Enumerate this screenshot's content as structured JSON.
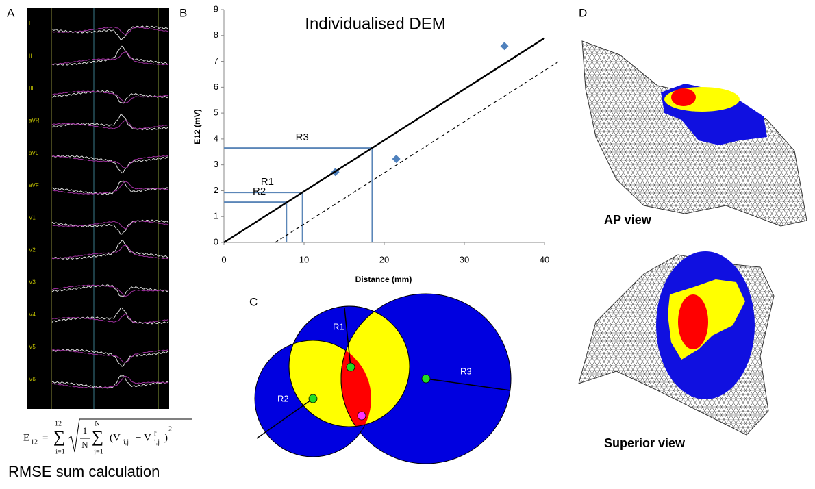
{
  "panel_labels": [
    "A",
    "B",
    "C",
    "D"
  ],
  "ecg": {
    "leads": [
      "I",
      "II",
      "III",
      "aVR",
      "aVL",
      "aVF",
      "V1",
      "V2",
      "V3",
      "V4",
      "V5",
      "V6"
    ],
    "caption": "RMSE sum calculation"
  },
  "formula": {
    "lhs": "E",
    "lhs_sub": "12",
    "eq": "=",
    "sigma": "∑",
    "sum1_top": "12",
    "sum1_bottom": "i=1",
    "frac_num": "1",
    "frac_den": "N",
    "sum2_top": "N",
    "sum2_bottom": "j=1",
    "term": "(V",
    "term_sub": "i,j",
    "minus": "− V",
    "minus_sup": "r",
    "minus_sub": "i,j",
    "close": ")",
    "power": "2"
  },
  "chart_data": {
    "type": "scatter",
    "title": "Individualised DEM",
    "x_label": "Distance (mm)",
    "y_label": "E12 (mV)",
    "xlim": [
      0,
      40
    ],
    "ylim": [
      0,
      9
    ],
    "xticks": [
      0,
      10,
      20,
      30,
      40
    ],
    "yticks": [
      0,
      1,
      2,
      3,
      4,
      5,
      6,
      7,
      8,
      9
    ],
    "series": [
      {
        "mode": "markers",
        "marker": "diamond",
        "color": "#4f81bd",
        "x": [
          13.9,
          21.5,
          35.0
        ],
        "values": [
          2.72,
          3.23,
          7.59
        ]
      },
      {
        "mode": "line",
        "dash": false,
        "color": "#000000",
        "x": [
          0,
          40
        ],
        "values": [
          0,
          7.9
        ]
      },
      {
        "mode": "line",
        "dash": true,
        "color": "#000000",
        "x": [
          6.4,
          41.7
        ],
        "values": [
          0,
          6.98
        ]
      }
    ],
    "guides": [
      {
        "label": "R1",
        "x": 9.8,
        "y": 1.93
      },
      {
        "label": "R2",
        "x": 7.8,
        "y": 1.56
      },
      {
        "label": "R3",
        "x": 18.5,
        "y": 3.65
      }
    ],
    "guide_color": "#5b86b8"
  },
  "venn": {
    "labels": [
      "R1",
      "R2",
      "R3"
    ]
  },
  "mesh": {
    "views": [
      "AP view",
      "Superior view"
    ]
  }
}
